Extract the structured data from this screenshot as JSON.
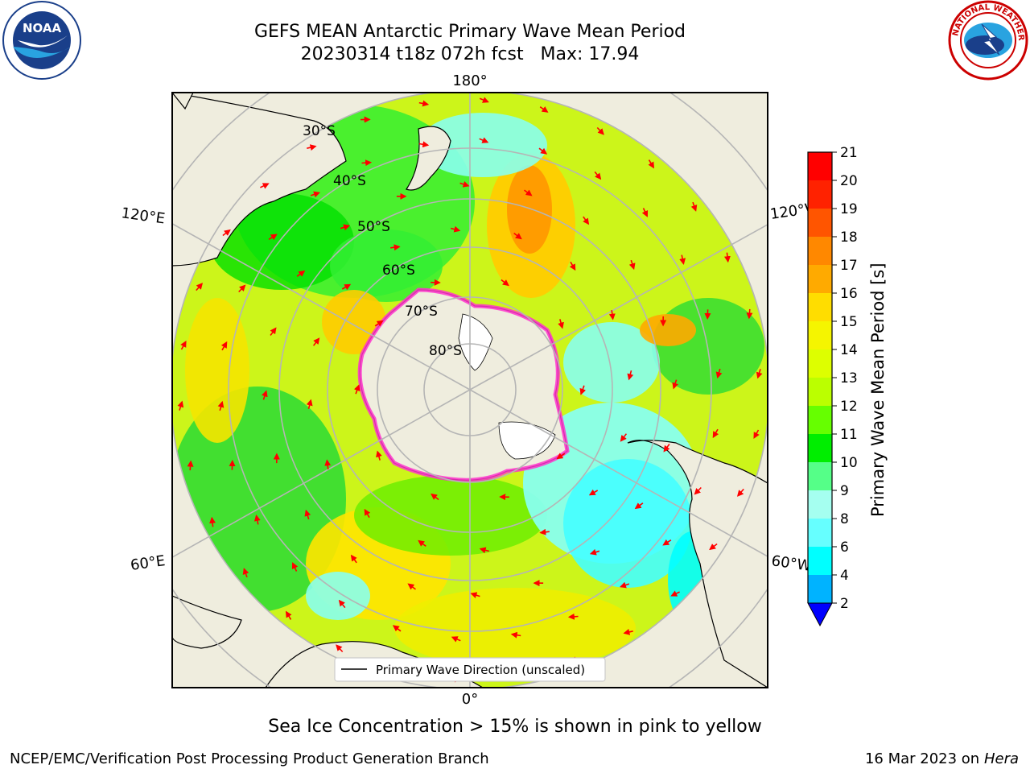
{
  "header": {
    "title_line1": "GEFS MEAN Antarctic Primary Wave Mean Period",
    "title_line2": "20230314 t18z 072h fcst   Max: 17.94"
  },
  "logos": {
    "left": {
      "name": "noaa-logo",
      "text": "NOAA",
      "ring_text": "NATIONAL OCEANIC AND ATMOSPHERIC ADMINISTRATION · U.S. DEPARTMENT OF COMMERCE"
    },
    "right": {
      "name": "nws-logo",
      "ring_text": "NATIONAL WEATHER SERVICE"
    }
  },
  "map": {
    "projection": "south-polar-stereographic",
    "colors": {
      "land": "#efedde",
      "ice": "#ffffff",
      "graticule": "#b5b5b5",
      "arrow": "#ff0000",
      "sea_ice_edge": "#ff33cc",
      "frame": "#000000"
    },
    "latitude_labels": [
      "30°S",
      "40°S",
      "50°S",
      "60°S",
      "70°S",
      "80°S"
    ],
    "longitude_labels": {
      "top": "180°",
      "bottom": "0°",
      "left_upper": "120°E",
      "left_lower": "60°E",
      "right_upper": "120°W",
      "right_lower": "60°W"
    },
    "legend": {
      "label": "Primary Wave Direction (unscaled)"
    }
  },
  "colorbar": {
    "label": "Primary Wave Mean Period [s]",
    "ticks": [
      "2",
      "4",
      "6",
      "8",
      "9",
      "10",
      "11",
      "12",
      "13",
      "14",
      "15",
      "16",
      "17",
      "18",
      "19",
      "20",
      "21"
    ],
    "colors": [
      "#0066ff",
      "#00b3ff",
      "#00ffff",
      "#66ffff",
      "#a5fff0",
      "#55ff88",
      "#00ee00",
      "#66ff00",
      "#bbff00",
      "#ddff00",
      "#f5f500",
      "#ffdd00",
      "#ffaa00",
      "#ff8800",
      "#ff5500",
      "#ff2200",
      "#ff0000"
    ],
    "under_color": "#0000ff",
    "extend": "min"
  },
  "footer": {
    "caption": "Sea Ice Concentration > 15% is shown in pink to yellow",
    "left": "NCEP/EMC/Verification Post Processing Product Generation Branch",
    "right_date": "16 Mar 2023 on",
    "right_host": "Hera"
  }
}
